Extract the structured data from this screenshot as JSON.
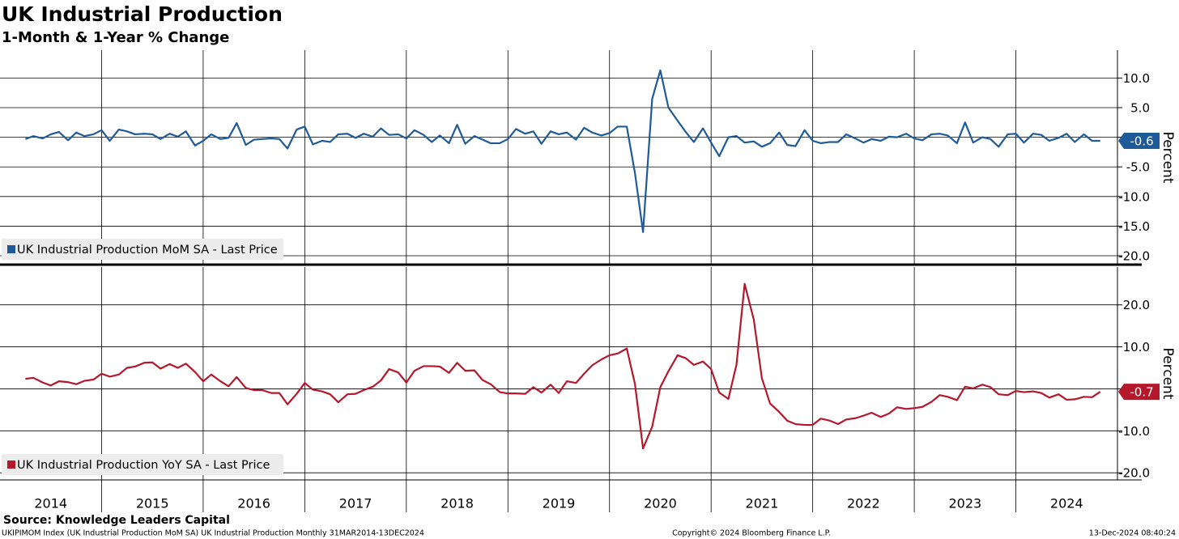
{
  "header": {
    "title": "UK Industrial Production",
    "subtitle": "1-Month & 1-Year % Change"
  },
  "footer": {
    "source": "Source: Knowledge Leaders Capital",
    "description": "UKIPIMOM Index (UK Industrial Production MoM SA) UK Industrial Production  Monthly 31MAR2014-13DEC2024",
    "copyright": "Copyright© 2024 Bloomberg Finance L.P.",
    "timestamp": "13-Dec-2024 08:40:24"
  },
  "chart_data": [
    {
      "type": "line",
      "y_label": "Percent",
      "grid": true,
      "show_xtick_labels": false,
      "xlim": [
        2014,
        2025
      ],
      "xticks": [
        2014,
        2015,
        2016,
        2017,
        2018,
        2019,
        2020,
        2021,
        2022,
        2023,
        2024
      ],
      "ylim": [
        -21.5,
        14.7
      ],
      "yticks": [
        {
          "value": 10,
          "label": "10.0"
        },
        {
          "value": 5,
          "label": "5.0"
        },
        {
          "value": 0,
          "label": "0.0"
        },
        {
          "value": -5,
          "label": "-5.0"
        },
        {
          "value": -10,
          "label": "-10.0"
        },
        {
          "value": -15,
          "label": "-15.0"
        },
        {
          "value": -20,
          "label": "-20.0"
        }
      ],
      "x": [
        2014.25,
        2014.33,
        2014.42,
        2014.5,
        2014.58,
        2014.67,
        2014.75,
        2014.83,
        2014.92,
        2015.0,
        2015.08,
        2015.17,
        2015.25,
        2015.33,
        2015.42,
        2015.5,
        2015.58,
        2015.67,
        2015.75,
        2015.83,
        2015.92,
        2016.0,
        2016.08,
        2016.17,
        2016.25,
        2016.33,
        2016.42,
        2016.5,
        2016.58,
        2016.67,
        2016.75,
        2016.83,
        2016.92,
        2017.0,
        2017.08,
        2017.17,
        2017.25,
        2017.33,
        2017.42,
        2017.5,
        2017.58,
        2017.67,
        2017.75,
        2017.83,
        2017.92,
        2018.0,
        2018.08,
        2018.17,
        2018.25,
        2018.33,
        2018.42,
        2018.5,
        2018.58,
        2018.67,
        2018.75,
        2018.83,
        2018.92,
        2019.0,
        2019.08,
        2019.17,
        2019.25,
        2019.33,
        2019.42,
        2019.5,
        2019.58,
        2019.67,
        2019.75,
        2019.83,
        2019.92,
        2020.0,
        2020.08,
        2020.17,
        2020.25,
        2020.33,
        2020.42,
        2020.5,
        2020.58,
        2020.67,
        2020.75,
        2020.83,
        2020.92,
        2021.0,
        2021.08,
        2021.17,
        2021.25,
        2021.33,
        2021.42,
        2021.5,
        2021.58,
        2021.67,
        2021.75,
        2021.83,
        2021.92,
        2022.0,
        2022.08,
        2022.17,
        2022.25,
        2022.33,
        2022.42,
        2022.5,
        2022.58,
        2022.67,
        2022.75,
        2022.83,
        2022.92,
        2023.0,
        2023.08,
        2023.17,
        2023.25,
        2023.33,
        2023.42,
        2023.5,
        2023.58,
        2023.67,
        2023.75,
        2023.83,
        2023.92,
        2024.0,
        2024.08,
        2024.17,
        2024.25,
        2024.33,
        2024.42,
        2024.5,
        2024.58,
        2024.67,
        2024.75,
        2024.83
      ],
      "series": [
        {
          "name": "UK Industrial Production MoM SA - Last Price",
          "color": "#1f5b99",
          "last_label": "-0.6",
          "values": [
            -0.3,
            0.2,
            -0.2,
            0.5,
            0.9,
            -0.5,
            0.8,
            0.2,
            0.5,
            1.2,
            -0.6,
            1.3,
            1.0,
            0.5,
            0.6,
            0.5,
            -0.3,
            0.6,
            0.1,
            1.0,
            -1.4,
            -0.6,
            0.5,
            -0.3,
            -0.1,
            2.4,
            -1.3,
            -0.4,
            -0.3,
            -0.2,
            -0.3,
            -1.9,
            1.3,
            1.8,
            -1.2,
            -0.6,
            -0.8,
            0.5,
            0.6,
            -0.1,
            0.6,
            0.1,
            1.5,
            0.4,
            0.5,
            -0.2,
            1.2,
            0.4,
            -0.8,
            0.3,
            -1.0,
            2.1,
            -1.1,
            0.2,
            -0.4,
            -1.0,
            -1.0,
            -0.3,
            1.4,
            0.6,
            1.0,
            -1.1,
            1.0,
            0.5,
            0.8,
            -0.4,
            1.6,
            0.8,
            0.3,
            0.7,
            1.8,
            1.8,
            -6.0,
            -16.0,
            6.5,
            11.3,
            5.0,
            2.8,
            0.9,
            -0.8,
            1.5,
            -0.9,
            -3.2,
            0.0,
            0.2,
            -0.9,
            -0.7,
            -1.6,
            -1.0,
            0.8,
            -1.3,
            -1.5,
            1.2,
            -0.6,
            -1.0,
            -0.8,
            -0.8,
            0.5,
            -0.2,
            -0.9,
            -0.3,
            -0.6,
            0.1,
            0.0,
            0.6,
            -0.2,
            -0.5,
            0.5,
            0.6,
            0.3,
            -1.0,
            2.5,
            -0.9,
            0.0,
            -0.3,
            -1.6,
            0.5,
            0.6,
            -0.9,
            0.6,
            0.4,
            -0.6,
            -0.1,
            0.6,
            -0.8,
            0.5,
            -0.6,
            -0.6
          ]
        }
      ]
    },
    {
      "type": "line",
      "y_label": "Percent",
      "grid": true,
      "show_xtick_labels": true,
      "xlim": [
        2014,
        2025
      ],
      "xticks": [
        2014,
        2015,
        2016,
        2017,
        2018,
        2019,
        2020,
        2021,
        2022,
        2023,
        2024
      ],
      "ylim": [
        -21.7,
        29.0
      ],
      "yticks": [
        {
          "value": 20,
          "label": "20.0"
        },
        {
          "value": 10,
          "label": "10.0"
        },
        {
          "value": 0,
          "label": "0.0"
        },
        {
          "value": -10,
          "label": "-10.0"
        },
        {
          "value": -20,
          "label": "-20.0"
        }
      ],
      "x": [
        2014.25,
        2014.33,
        2014.42,
        2014.5,
        2014.58,
        2014.67,
        2014.75,
        2014.83,
        2014.92,
        2015.0,
        2015.08,
        2015.17,
        2015.25,
        2015.33,
        2015.42,
        2015.5,
        2015.58,
        2015.67,
        2015.75,
        2015.83,
        2015.92,
        2016.0,
        2016.08,
        2016.17,
        2016.25,
        2016.33,
        2016.42,
        2016.5,
        2016.58,
        2016.67,
        2016.75,
        2016.83,
        2016.92,
        2017.0,
        2017.08,
        2017.17,
        2017.25,
        2017.33,
        2017.42,
        2017.5,
        2017.58,
        2017.67,
        2017.75,
        2017.83,
        2017.92,
        2018.0,
        2018.08,
        2018.17,
        2018.25,
        2018.33,
        2018.42,
        2018.5,
        2018.58,
        2018.67,
        2018.75,
        2018.83,
        2018.92,
        2019.0,
        2019.08,
        2019.17,
        2019.25,
        2019.33,
        2019.42,
        2019.5,
        2019.58,
        2019.67,
        2019.75,
        2019.83,
        2019.92,
        2020.0,
        2020.08,
        2020.17,
        2020.25,
        2020.33,
        2020.42,
        2020.5,
        2020.58,
        2020.67,
        2020.75,
        2020.83,
        2020.92,
        2021.0,
        2021.08,
        2021.17,
        2021.25,
        2021.33,
        2021.42,
        2021.5,
        2021.58,
        2021.67,
        2021.75,
        2021.83,
        2021.92,
        2022.0,
        2022.08,
        2022.17,
        2022.25,
        2022.33,
        2022.42,
        2022.5,
        2022.58,
        2022.67,
        2022.75,
        2022.83,
        2022.92,
        2023.0,
        2023.08,
        2023.17,
        2023.25,
        2023.33,
        2023.42,
        2023.5,
        2023.58,
        2023.67,
        2023.75,
        2023.83,
        2023.92,
        2024.0,
        2024.08,
        2024.17,
        2024.25,
        2024.33,
        2024.42,
        2024.5,
        2024.58,
        2024.67,
        2024.75,
        2024.83
      ],
      "series": [
        {
          "name": "UK Industrial Production YoY SA - Last Price",
          "color": "#b5172b",
          "last_label": "-0.7",
          "values": [
            2.4,
            2.6,
            1.5,
            0.8,
            1.8,
            1.6,
            1.1,
            1.9,
            2.2,
            3.6,
            2.9,
            3.4,
            5.0,
            5.3,
            6.2,
            6.3,
            4.8,
            5.9,
            5.0,
            6.0,
            4.0,
            1.8,
            3.4,
            1.8,
            0.6,
            2.8,
            0.2,
            -0.3,
            -0.3,
            -1.0,
            -1.0,
            -3.7,
            -1.2,
            1.4,
            -0.2,
            -0.6,
            -1.3,
            -3.2,
            -1.3,
            -1.2,
            -0.3,
            0.5,
            2.0,
            4.7,
            3.9,
            1.5,
            4.3,
            5.4,
            5.4,
            5.3,
            3.8,
            6.2,
            4.3,
            4.4,
            2.1,
            1.1,
            -0.8,
            -1.1,
            -1.1,
            -1.2,
            0.4,
            -0.9,
            1.0,
            -1.0,
            1.8,
            1.4,
            3.6,
            5.6,
            7.0,
            8.0,
            8.4,
            9.6,
            1.2,
            -14.2,
            -9.0,
            0.4,
            4.2,
            8.0,
            7.3,
            5.7,
            6.5,
            4.7,
            -0.9,
            -2.4,
            5.8,
            25.0,
            16.5,
            2.5,
            -3.5,
            -5.5,
            -7.6,
            -8.4,
            -8.6,
            -8.6,
            -7.1,
            -7.6,
            -8.4,
            -7.3,
            -7.0,
            -6.4,
            -5.7,
            -6.7,
            -5.9,
            -4.4,
            -4.8,
            -4.6,
            -4.3,
            -3.1,
            -1.5,
            -1.9,
            -2.7,
            0.5,
            0.1,
            1.0,
            0.4,
            -1.3,
            -1.5,
            -0.5,
            -0.8,
            -0.6,
            -1.0,
            -2.1,
            -1.3,
            -2.6,
            -2.5,
            -1.9,
            -2.0,
            -0.7
          ]
        }
      ]
    }
  ]
}
